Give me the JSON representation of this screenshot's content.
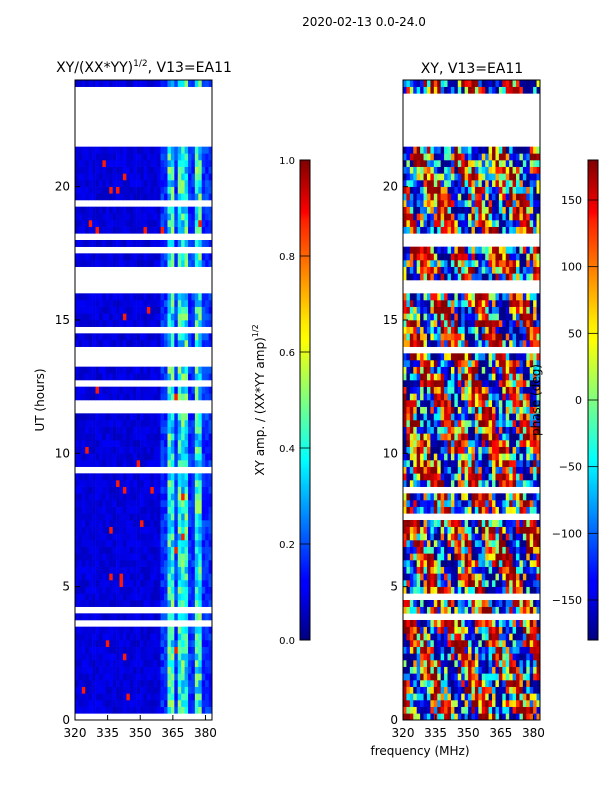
{
  "figure": {
    "suptitle": "2020-02-13 0.0-24.0",
    "shared_xlabel": "frequency (MHz)"
  },
  "chart_data": [
    {
      "type": "heatmap",
      "title": "XY/(XX*YY)^1/2, V13=EA11",
      "title_main": "XY/(XX*YY)",
      "title_sup": "1/2",
      "title_tail": ", V13=EA11",
      "xlabel": "frequency (MHz)",
      "ylabel": "UT (hours)",
      "xlim": [
        320,
        383
      ],
      "ylim": [
        0,
        24
      ],
      "xticks": [
        320,
        335,
        350,
        365,
        380
      ],
      "yticks": [
        0,
        5,
        10,
        15,
        20
      ],
      "colorbar": {
        "label": "XY amp. / (XX*YY amp)^1/2",
        "label_main": "XY amp. / (XX*YY amp)",
        "label_sup": "1/2",
        "range": [
          0.0,
          1.0
        ],
        "ticks": [
          "0.0",
          "0.2",
          "0.4",
          "0.6",
          "0.8",
          "1.0"
        ],
        "colormap": "jet"
      },
      "flagged_hours": [
        [
          21.6,
          23.5
        ],
        [
          18.0,
          18.3
        ],
        [
          16.1,
          16.5
        ],
        [
          13.8,
          14.1
        ]
      ],
      "bright_channels_mhz": [
        [
          362,
          366
        ],
        [
          368,
          372
        ],
        [
          375,
          379
        ]
      ]
    },
    {
      "type": "heatmap",
      "title": "XY, V13=EA11",
      "xlabel": "frequency (MHz)",
      "ylabel": "",
      "xlim": [
        320,
        383
      ],
      "ylim": [
        0,
        24
      ],
      "xticks": [
        320,
        335,
        350,
        365,
        380
      ],
      "yticks": [
        0,
        5,
        10,
        15,
        20
      ],
      "colorbar": {
        "label": "phase (deg)",
        "range": [
          -180,
          180
        ],
        "ticks": [
          "-150",
          "-100",
          "-50",
          "0",
          "50",
          "100",
          "150"
        ],
        "colormap": "jet"
      },
      "flagged_hours": [
        [
          21.6,
          23.5
        ],
        [
          18.0,
          18.3
        ],
        [
          16.1,
          16.5
        ],
        [
          13.8,
          14.1
        ]
      ]
    }
  ]
}
